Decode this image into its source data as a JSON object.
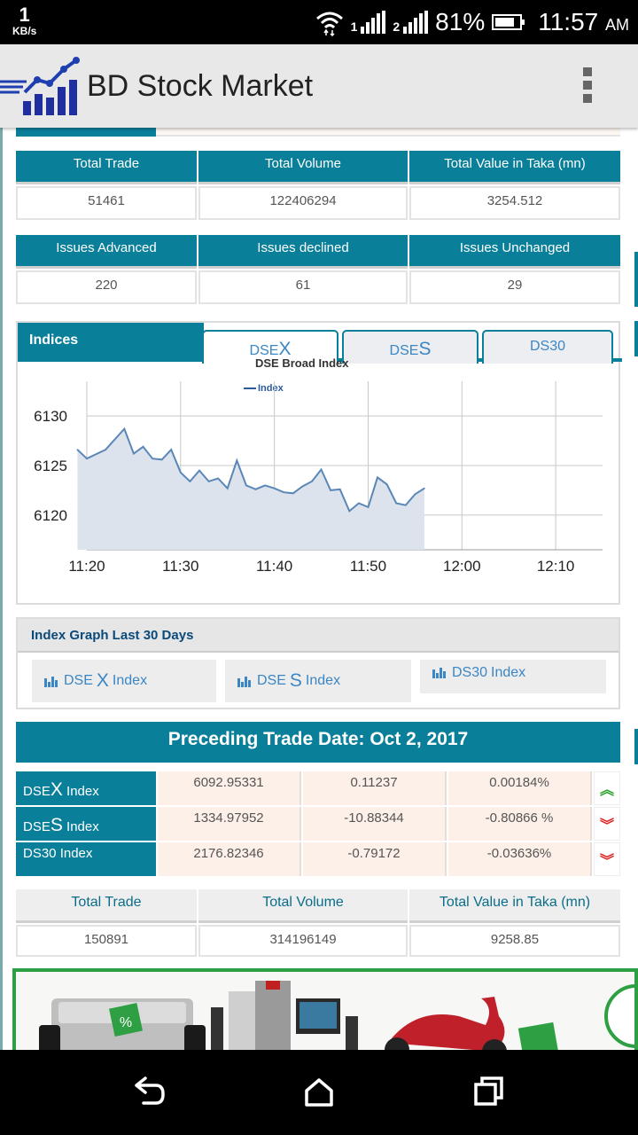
{
  "status_bar": {
    "speed_value": "1",
    "speed_unit": "KB/s",
    "sim1": "1",
    "sim2": "2",
    "battery": "81%",
    "battery_level": 0.81,
    "time": "11:57",
    "ampm": "AM"
  },
  "app_bar": {
    "title": "BD Stock Market",
    "logo_icon": "stock-chart-logo-icon",
    "menu_icon": "overflow-menu-icon"
  },
  "today_trade": {
    "headers": [
      "Total Trade",
      "Total Volume",
      "Total Value in Taka (mn)"
    ],
    "values": [
      "51461",
      "122406294",
      "3254.512"
    ]
  },
  "issues": {
    "headers": [
      "Issues Advanced",
      "Issues declined",
      "Issues Unchanged"
    ],
    "values": [
      "220",
      "61",
      "29"
    ]
  },
  "indices": {
    "title": "Indices",
    "tabs": [
      {
        "prefix": "DSE",
        "suffix": "X",
        "active": true
      },
      {
        "prefix": "DSE",
        "suffix": "S",
        "active": false
      },
      {
        "prefix": "DS30",
        "suffix": "",
        "active": false
      }
    ]
  },
  "chart_data": {
    "type": "area",
    "title": "DSE Broad Index",
    "legend": [
      "Index"
    ],
    "x_ticks": [
      "11:20",
      "11:30",
      "11:40",
      "11:50",
      "12:00",
      "12:10"
    ],
    "y_ticks": [
      6130,
      6125,
      6120
    ],
    "xlim_minutes": [
      680,
      735
    ],
    "ylim": [
      6116.5,
      6133.5
    ],
    "series": [
      {
        "name": "Index",
        "x_minutes": [
          679,
          680,
          682,
          684,
          685,
          686,
          687,
          688,
          689,
          690,
          691,
          692,
          693,
          694,
          695,
          696,
          697,
          698,
          699,
          700,
          701,
          702,
          703,
          704,
          705,
          706,
          707,
          708,
          709,
          710,
          711,
          712,
          713,
          714,
          715,
          716
        ],
        "values": [
          6126.6,
          6125.7,
          6126.6,
          6128.7,
          6126.2,
          6126.9,
          6125.7,
          6125.6,
          6126.6,
          6124.3,
          6123.4,
          6124.5,
          6123.4,
          6123.7,
          6122.7,
          6125.5,
          6123.0,
          6122.6,
          6123.0,
          6122.7,
          6122.3,
          6122.2,
          6122.9,
          6123.4,
          6124.6,
          6122.5,
          6122.6,
          6120.4,
          6121.2,
          6120.8,
          6123.8,
          6123.1,
          6121.2,
          6121.0,
          6122.1,
          6122.7
        ]
      }
    ]
  },
  "last30": {
    "title": "Index Graph Last 30 Days",
    "buttons": [
      {
        "prefix": "DSE",
        "suffix": "X",
        "rest": " Index"
      },
      {
        "prefix": "DSE",
        "suffix": "S",
        "rest": " Index"
      },
      {
        "prefix": "DS30",
        "suffix": "",
        "rest": " Index"
      }
    ],
    "chart_icon": "bar-chart-icon"
  },
  "preceding": {
    "title": "Preceding Trade Date: Oct 2, 2017",
    "rows": [
      {
        "prefix": "DSE",
        "suffix": "X",
        "rest": " Index",
        "value": "6092.95331",
        "change": "0.11237",
        "percent": "0.00184%",
        "trend": "up",
        "trend_icon": "double-chevron-up-icon"
      },
      {
        "prefix": "DSE",
        "suffix": "S",
        "rest": " Index",
        "value": "1334.97952",
        "change": "-10.88344",
        "percent": "-0.80866 %",
        "trend": "down",
        "trend_icon": "double-chevron-down-icon"
      },
      {
        "prefix": "DS30",
        "suffix": "",
        "rest": " Index",
        "value": "2176.82346",
        "change": "-0.79172",
        "percent": "-0.03636%",
        "trend": "down",
        "trend_icon": "double-chevron-down-icon"
      }
    ],
    "trade_headers": [
      "Total Trade",
      "Total Volume",
      "Total Value in Taka (mn)"
    ],
    "trade_values": [
      "150891",
      "314196149",
      "9258.85"
    ]
  },
  "ad": {
    "badge": "%"
  },
  "nav_bar": {
    "back_icon": "back-icon",
    "home_icon": "home-icon",
    "recents_icon": "recents-icon"
  },
  "colors": {
    "teal": "#0a7f9a",
    "tab_text": "#3b86c4",
    "chart_line": "#5a87b8",
    "chart_fill": "#dde3ec",
    "up": "#2aa02a",
    "down": "#e02020",
    "ad_border": "#2ea043"
  }
}
